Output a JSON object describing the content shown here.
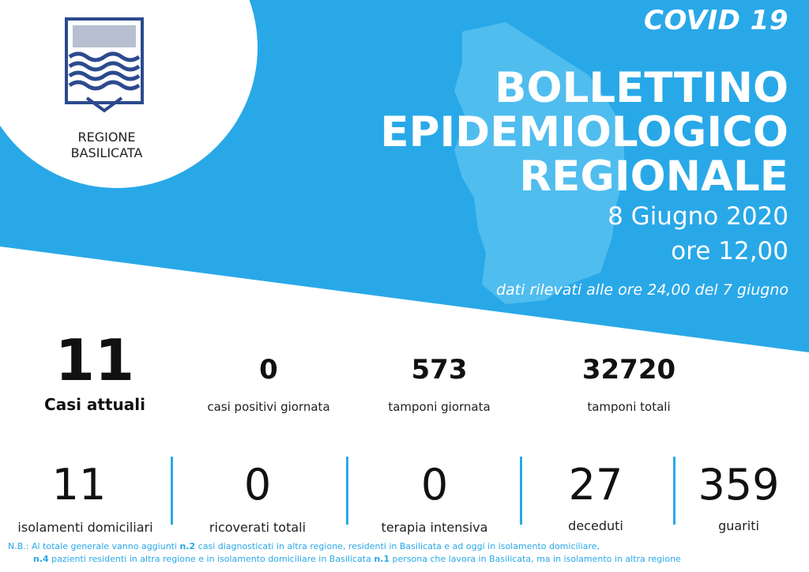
{
  "header": {
    "covid": "COVID 19",
    "title_lines": [
      "BOLLETTINO",
      "EPIDEMIOLOGICO",
      "REGIONALE"
    ],
    "date": "8 Giugno 2020",
    "time": "ore 12,00",
    "note": "dati rilevati alle ore 24,00 del 7 giugno"
  },
  "region": {
    "line1": "REGIONE",
    "line2": "BASILICATA"
  },
  "stats_top": {
    "casi_attuali": {
      "value": "11",
      "label": "Casi attuali"
    },
    "positivi": {
      "value": "0",
      "label": "casi positivi giornata"
    },
    "tamponi_giorno": {
      "value": "573",
      "label": "tamponi giornata"
    },
    "tamponi_totali": {
      "value": "32720",
      "label": "tamponi totali"
    }
  },
  "stats_bottom": [
    {
      "value": "11",
      "label": "isolamenti domiciliari"
    },
    {
      "value": "0",
      "label": "ricoverati totali"
    },
    {
      "value": "0",
      "label": "terapia intensiva"
    },
    {
      "value": "27",
      "label": "deceduti"
    },
    {
      "value": "359",
      "label": "guariti"
    }
  ],
  "footnote": {
    "l1_a": "N.B.: Al totale generale vanno aggiunti ",
    "l1_b": "n.2",
    "l1_c": " casi diagnosticati in altra regione, residenti in Basilicata e ad oggi in isolamento domiciliare,",
    "l2_a": "n.4",
    "l2_b": " pazienti residenti in altra regione e in isolamento domiciliare in Basilicata ",
    "l2_c": "n.1",
    "l2_d": " persona che lavora in Basilicata, ma in isolamento in altra regione"
  },
  "colors": {
    "blue": "#29a8e8",
    "map": "#5ec4f2",
    "divider": "#29a8e8"
  }
}
